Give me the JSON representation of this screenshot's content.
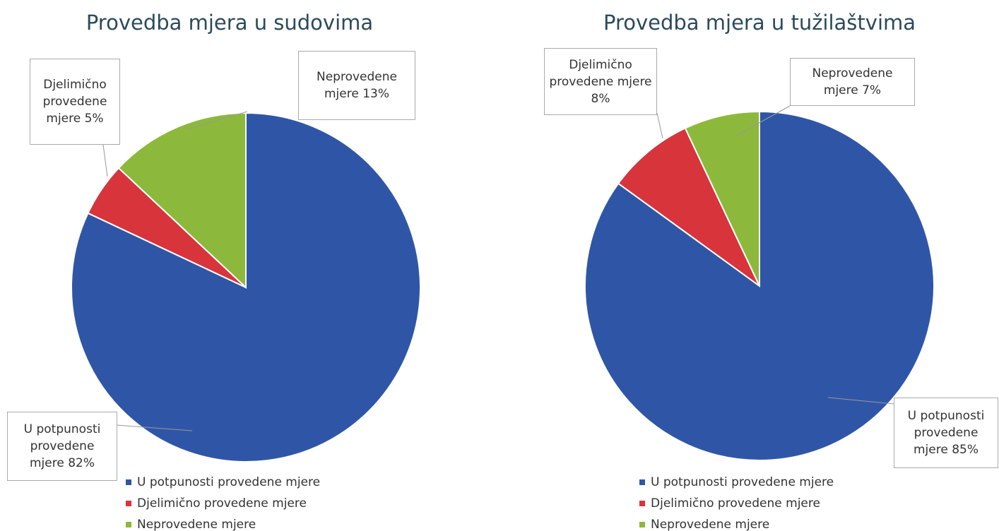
{
  "chart_data": [
    {
      "type": "pie",
      "title": "Provedba mjera u sudovima",
      "categories": [
        "U potpunosti provedene mjere",
        "Djelimično provedene mjere",
        "Neprovedene mjere"
      ],
      "values": [
        82,
        5,
        13
      ],
      "value_labels": [
        "U potpunosti provedene mjere 82%",
        "Djelimično provedene mjere 5%",
        "Neprovedene mjere 13%"
      ],
      "colors": [
        "#2f56a6",
        "#d7343c",
        "#8cb93b"
      ],
      "legend": "bottom"
    },
    {
      "type": "pie",
      "title": "Provedba mjera u tužilaštvima",
      "categories": [
        "U potpunosti provedene mjere",
        "Djelimično provedene mjere",
        "Neprovedene mjere"
      ],
      "values": [
        85,
        8,
        7
      ],
      "value_labels": [
        "U potpunosti provedene mjere 85%",
        "Djelimično provedene mjere 8%",
        "Neprovedene mjere 7%"
      ],
      "colors": [
        "#2f56a6",
        "#d7343c",
        "#8cb93b"
      ],
      "legend": "bottom"
    }
  ]
}
